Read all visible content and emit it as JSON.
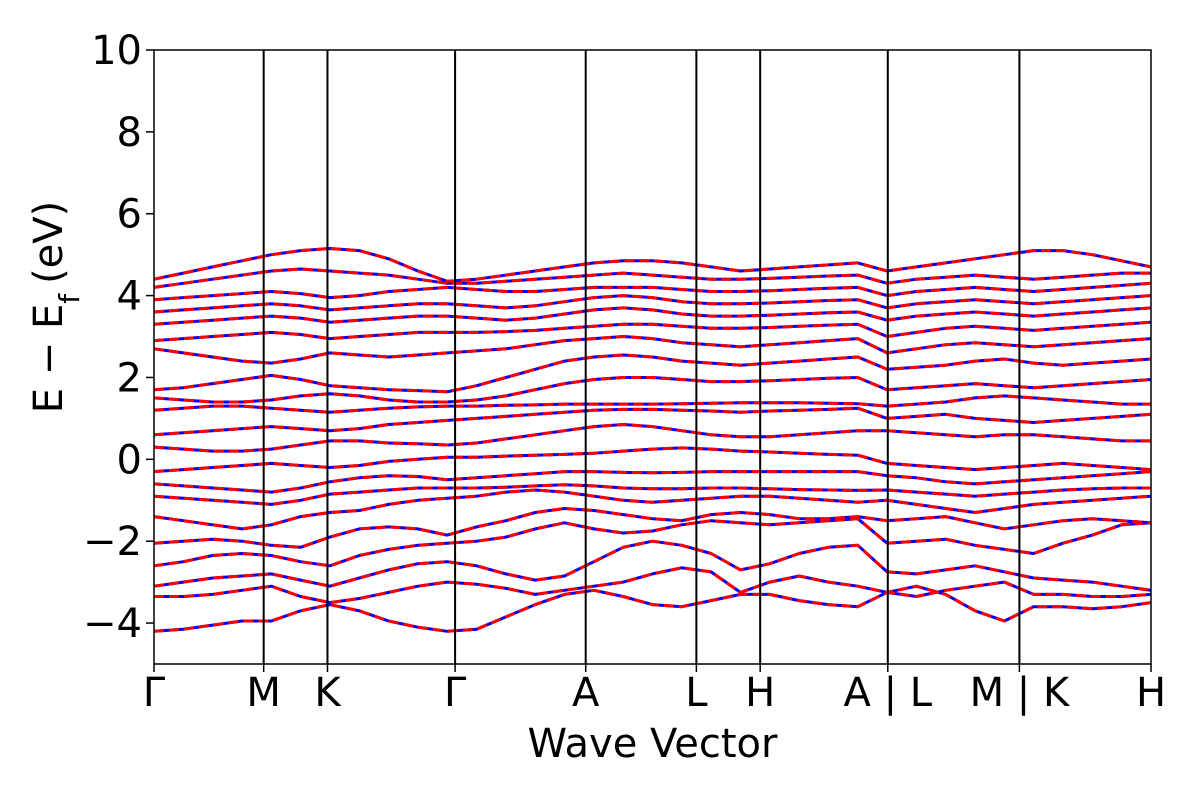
{
  "chart_data": {
    "type": "line",
    "title": "",
    "xlabel": "Wave Vector",
    "ylabel": "E − E",
    "ylabel_subscript": "f",
    "ylabel_unit": "(eV)",
    "ylim": [
      -5,
      10
    ],
    "yticks": [
      -4,
      -2,
      0,
      2,
      4,
      6,
      8,
      10
    ],
    "ytick_labels": [
      "−4",
      "−2",
      "0",
      "2",
      "4",
      "6",
      "8",
      "10"
    ],
    "kpath": [
      {
        "label": "Γ",
        "k": 0.0
      },
      {
        "label": "M",
        "k": 0.11
      },
      {
        "label": "K",
        "k": 0.174
      },
      {
        "label": "Γ",
        "k": 0.302
      },
      {
        "label": "A",
        "k": 0.433
      },
      {
        "label": "L",
        "k": 0.544
      },
      {
        "label": "H",
        "k": 0.608
      },
      {
        "label": "A | L",
        "k": 0.736
      },
      {
        "label": "M | K",
        "k": 0.868
      },
      {
        "label": "H",
        "k": 1.0
      }
    ],
    "xlim": [
      0,
      1
    ],
    "series_colors": {
      "spin_up": "#0000ff",
      "spin_down": "#ff0000"
    },
    "style": "spin-up (blue) and spin-down (red, dashed overlay) bands coincide",
    "bands": [
      [
        -4.2,
        -4.15,
        -4.05,
        -3.95,
        -3.95,
        -3.7,
        -3.55,
        -3.7,
        -3.95,
        -4.1,
        -4.2,
        -4.15,
        -3.85,
        -3.55,
        -3.3,
        -3.2,
        -3.35,
        -3.55,
        -3.6,
        -3.45,
        -3.3,
        -3.3,
        -3.45,
        -3.55,
        -3.6,
        -3.25,
        -3.1,
        -3.3,
        -3.7,
        -3.95,
        -3.6,
        -3.6,
        -3.65,
        -3.6,
        -3.5
      ],
      [
        -3.35,
        -3.35,
        -3.3,
        -3.2,
        -3.1,
        -3.35,
        -3.5,
        -3.4,
        -3.25,
        -3.1,
        -3.0,
        -3.05,
        -3.15,
        -3.3,
        -3.2,
        -3.1,
        -3.0,
        -2.8,
        -2.65,
        -2.75,
        -3.25,
        -3.0,
        -2.85,
        -3.0,
        -3.1,
        -3.25,
        -3.35,
        -3.2,
        -3.1,
        -3.0,
        -3.3,
        -3.3,
        -3.35,
        -3.35,
        -3.3
      ],
      [
        -3.1,
        -3.0,
        -2.9,
        -2.85,
        -2.8,
        -2.95,
        -3.1,
        -2.9,
        -2.7,
        -2.55,
        -2.5,
        -2.6,
        -2.8,
        -2.95,
        -2.85,
        -2.5,
        -2.15,
        -2.0,
        -2.1,
        -2.3,
        -2.7,
        -2.55,
        -2.3,
        -2.15,
        -2.1,
        -2.75,
        -2.8,
        -2.7,
        -2.6,
        -2.75,
        -2.9,
        -2.95,
        -3.0,
        -3.1,
        -3.2
      ],
      [
        -2.6,
        -2.5,
        -2.35,
        -2.3,
        -2.35,
        -2.5,
        -2.6,
        -2.35,
        -2.2,
        -2.1,
        -2.05,
        -2.0,
        -1.9,
        -1.7,
        -1.55,
        -1.7,
        -1.8,
        -1.75,
        -1.6,
        -1.5,
        -1.55,
        -1.6,
        -1.55,
        -1.5,
        -1.45,
        -2.05,
        -2.0,
        -1.95,
        -2.1,
        -2.2,
        -2.3,
        -2.05,
        -1.85,
        -1.6,
        -1.55
      ],
      [
        -2.05,
        -2.0,
        -1.95,
        -2.0,
        -2.1,
        -2.15,
        -1.9,
        -1.7,
        -1.65,
        -1.7,
        -1.85,
        -1.65,
        -1.5,
        -1.3,
        -1.2,
        -1.25,
        -1.35,
        -1.45,
        -1.5,
        -1.35,
        -1.3,
        -1.35,
        -1.45,
        -1.45,
        -1.4,
        -1.5,
        -1.45,
        -1.4,
        -1.55,
        -1.7,
        -1.6,
        -1.5,
        -1.45,
        -1.5,
        -1.55
      ],
      [
        -1.4,
        -1.5,
        -1.6,
        -1.7,
        -1.6,
        -1.4,
        -1.3,
        -1.25,
        -1.1,
        -1.0,
        -0.95,
        -0.9,
        -0.8,
        -0.75,
        -0.8,
        -0.9,
        -1.0,
        -1.05,
        -1.0,
        -0.95,
        -0.9,
        -0.9,
        -0.95,
        -1.0,
        -1.05,
        -1.0,
        -1.1,
        -1.2,
        -1.3,
        -1.2,
        -1.1,
        -1.05,
        -1.0,
        -0.95,
        -0.9
      ],
      [
        -0.9,
        -0.95,
        -1.0,
        -1.05,
        -1.1,
        -1.0,
        -0.85,
        -0.8,
        -0.75,
        -0.7,
        -0.7,
        -0.7,
        -0.68,
        -0.65,
        -0.62,
        -0.65,
        -0.7,
        -0.72,
        -0.72,
        -0.7,
        -0.7,
        -0.72,
        -0.74,
        -0.75,
        -0.76,
        -0.75,
        -0.8,
        -0.85,
        -0.9,
        -0.85,
        -0.8,
        -0.75,
        -0.72,
        -0.7,
        -0.7
      ],
      [
        -0.6,
        -0.65,
        -0.7,
        -0.75,
        -0.8,
        -0.7,
        -0.55,
        -0.45,
        -0.4,
        -0.42,
        -0.5,
        -0.45,
        -0.4,
        -0.35,
        -0.3,
        -0.3,
        -0.32,
        -0.33,
        -0.32,
        -0.3,
        -0.3,
        -0.3,
        -0.3,
        -0.3,
        -0.3,
        -0.4,
        -0.45,
        -0.55,
        -0.6,
        -0.55,
        -0.5,
        -0.45,
        -0.4,
        -0.35,
        -0.3
      ],
      [
        -0.3,
        -0.25,
        -0.2,
        -0.15,
        -0.1,
        -0.15,
        -0.2,
        -0.15,
        -0.05,
        0.0,
        0.05,
        0.05,
        0.08,
        0.1,
        0.12,
        0.15,
        0.2,
        0.25,
        0.28,
        0.25,
        0.2,
        0.18,
        0.15,
        0.12,
        0.1,
        -0.1,
        -0.15,
        -0.2,
        -0.25,
        -0.2,
        -0.15,
        -0.1,
        -0.15,
        -0.2,
        -0.25
      ],
      [
        0.3,
        0.25,
        0.2,
        0.2,
        0.25,
        0.35,
        0.45,
        0.45,
        0.4,
        0.38,
        0.35,
        0.4,
        0.5,
        0.6,
        0.7,
        0.8,
        0.85,
        0.8,
        0.7,
        0.6,
        0.55,
        0.55,
        0.6,
        0.65,
        0.7,
        0.7,
        0.65,
        0.6,
        0.55,
        0.6,
        0.6,
        0.55,
        0.5,
        0.45,
        0.45
      ],
      [
        0.6,
        0.65,
        0.7,
        0.75,
        0.8,
        0.75,
        0.7,
        0.75,
        0.85,
        0.9,
        0.95,
        1.0,
        1.05,
        1.1,
        1.15,
        1.2,
        1.22,
        1.22,
        1.2,
        1.18,
        1.15,
        1.18,
        1.2,
        1.22,
        1.25,
        1.0,
        1.05,
        1.1,
        1.0,
        0.95,
        0.9,
        0.95,
        1.0,
        1.05,
        1.1
      ],
      [
        1.2,
        1.25,
        1.3,
        1.3,
        1.25,
        1.2,
        1.15,
        1.2,
        1.25,
        1.28,
        1.3,
        1.3,
        1.32,
        1.33,
        1.35,
        1.35,
        1.35,
        1.35,
        1.36,
        1.37,
        1.38,
        1.38,
        1.38,
        1.37,
        1.36,
        1.3,
        1.35,
        1.4,
        1.5,
        1.55,
        1.5,
        1.45,
        1.4,
        1.35,
        1.35
      ],
      [
        1.5,
        1.45,
        1.4,
        1.4,
        1.45,
        1.55,
        1.6,
        1.55,
        1.45,
        1.4,
        1.4,
        1.45,
        1.55,
        1.7,
        1.85,
        1.95,
        2.0,
        2.0,
        1.95,
        1.9,
        1.9,
        1.92,
        1.95,
        1.98,
        2.0,
        1.7,
        1.75,
        1.8,
        1.85,
        1.8,
        1.75,
        1.8,
        1.85,
        1.9,
        1.95
      ],
      [
        1.7,
        1.75,
        1.85,
        1.95,
        2.05,
        1.95,
        1.8,
        1.75,
        1.7,
        1.68,
        1.65,
        1.8,
        2.0,
        2.2,
        2.4,
        2.5,
        2.55,
        2.5,
        2.4,
        2.35,
        2.3,
        2.35,
        2.4,
        2.45,
        2.5,
        2.2,
        2.25,
        2.3,
        2.4,
        2.45,
        2.35,
        2.3,
        2.35,
        2.4,
        2.45
      ],
      [
        2.7,
        2.6,
        2.5,
        2.4,
        2.35,
        2.45,
        2.6,
        2.55,
        2.5,
        2.55,
        2.6,
        2.65,
        2.7,
        2.8,
        2.9,
        2.95,
        3.0,
        2.95,
        2.85,
        2.8,
        2.75,
        2.8,
        2.85,
        2.9,
        2.95,
        2.6,
        2.7,
        2.8,
        2.85,
        2.8,
        2.75,
        2.8,
        2.85,
        2.9,
        2.95
      ],
      [
        2.9,
        2.95,
        3.0,
        3.05,
        3.1,
        3.05,
        2.95,
        3.0,
        3.05,
        3.1,
        3.1,
        3.1,
        3.12,
        3.15,
        3.2,
        3.25,
        3.3,
        3.3,
        3.25,
        3.2,
        3.2,
        3.22,
        3.25,
        3.28,
        3.3,
        3.0,
        3.1,
        3.2,
        3.25,
        3.2,
        3.15,
        3.2,
        3.25,
        3.3,
        3.35
      ],
      [
        3.3,
        3.35,
        3.4,
        3.45,
        3.5,
        3.45,
        3.35,
        3.4,
        3.45,
        3.5,
        3.5,
        3.45,
        3.4,
        3.45,
        3.55,
        3.65,
        3.7,
        3.65,
        3.55,
        3.5,
        3.5,
        3.52,
        3.55,
        3.58,
        3.6,
        3.4,
        3.5,
        3.55,
        3.6,
        3.55,
        3.5,
        3.55,
        3.6,
        3.65,
        3.7
      ],
      [
        3.6,
        3.65,
        3.7,
        3.75,
        3.8,
        3.75,
        3.65,
        3.7,
        3.75,
        3.8,
        3.8,
        3.75,
        3.7,
        3.75,
        3.85,
        3.95,
        4.0,
        3.95,
        3.85,
        3.8,
        3.8,
        3.82,
        3.85,
        3.88,
        3.9,
        3.7,
        3.8,
        3.85,
        3.9,
        3.85,
        3.8,
        3.85,
        3.9,
        3.95,
        4.0
      ],
      [
        3.9,
        3.95,
        4.0,
        4.05,
        4.1,
        4.05,
        3.95,
        4.0,
        4.1,
        4.15,
        4.2,
        4.15,
        4.1,
        4.1,
        4.15,
        4.2,
        4.2,
        4.2,
        4.15,
        4.1,
        4.1,
        4.12,
        4.15,
        4.18,
        4.2,
        4.0,
        4.1,
        4.15,
        4.2,
        4.15,
        4.1,
        4.15,
        4.2,
        4.25,
        4.3
      ],
      [
        4.2,
        4.3,
        4.4,
        4.5,
        4.6,
        4.65,
        4.6,
        4.55,
        4.5,
        4.4,
        4.3,
        4.3,
        4.35,
        4.4,
        4.45,
        4.5,
        4.55,
        4.5,
        4.45,
        4.4,
        4.4,
        4.42,
        4.45,
        4.48,
        4.5,
        4.3,
        4.4,
        4.45,
        4.5,
        4.45,
        4.4,
        4.45,
        4.5,
        4.55,
        4.55
      ],
      [
        4.4,
        4.55,
        4.7,
        4.85,
        5.0,
        5.1,
        5.15,
        5.1,
        4.9,
        4.6,
        4.35,
        4.4,
        4.5,
        4.6,
        4.7,
        4.8,
        4.85,
        4.85,
        4.8,
        4.7,
        4.6,
        4.65,
        4.7,
        4.75,
        4.8,
        4.6,
        4.7,
        4.8,
        4.9,
        5.0,
        5.1,
        5.1,
        5.0,
        4.85,
        4.7
      ]
    ]
  }
}
